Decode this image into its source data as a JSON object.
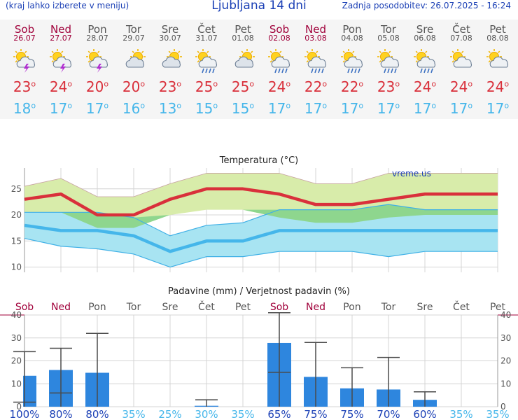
{
  "header": {
    "left_note": "(kraj lahko izberete v meniju)",
    "title": "Ljubljana 14 dni",
    "updated": "Zadnja posodobitev: 26.07.2025 - 16:24"
  },
  "days": [
    {
      "name": "Sob",
      "date": "26.07",
      "weekend": true,
      "icon": "sun-cloud-lightning-icon",
      "tmax": "23",
      "tmin": "18"
    },
    {
      "name": "Ned",
      "date": "27.07",
      "weekend": true,
      "icon": "sun-cloud-lightning-icon",
      "tmax": "24",
      "tmin": "17"
    },
    {
      "name": "Pon",
      "date": "28.07",
      "weekend": false,
      "icon": "sun-cloud-lightning-icon",
      "tmax": "20",
      "tmin": "17"
    },
    {
      "name": "Tor",
      "date": "29.07",
      "weekend": false,
      "icon": "cloudy-sun-icon",
      "tmax": "20",
      "tmin": "16"
    },
    {
      "name": "Sre",
      "date": "30.07",
      "weekend": false,
      "icon": "cloudy-sun-icon",
      "tmax": "23",
      "tmin": "13"
    },
    {
      "name": "Čet",
      "date": "31.07",
      "weekend": false,
      "icon": "sun-cloud-rain-icon",
      "tmax": "25",
      "tmin": "15"
    },
    {
      "name": "Pet",
      "date": "01.08",
      "weekend": false,
      "icon": "cloudy-sun-icon",
      "tmax": "25",
      "tmin": "15"
    },
    {
      "name": "Sob",
      "date": "02.08",
      "weekend": true,
      "icon": "sun-cloud-rain-icon",
      "tmax": "24",
      "tmin": "17"
    },
    {
      "name": "Ned",
      "date": "03.08",
      "weekend": true,
      "icon": "sun-cloud-rain-icon",
      "tmax": "22",
      "tmin": "17"
    },
    {
      "name": "Pon",
      "date": "04.08",
      "weekend": false,
      "icon": "sun-cloud-rain-icon",
      "tmax": "22",
      "tmin": "17"
    },
    {
      "name": "Tor",
      "date": "05.08",
      "weekend": false,
      "icon": "sun-cloud-rain-icon",
      "tmax": "23",
      "tmin": "17"
    },
    {
      "name": "Sre",
      "date": "06.08",
      "weekend": false,
      "icon": "sun-cloud-rain-icon",
      "tmax": "24",
      "tmin": "17"
    },
    {
      "name": "Čet",
      "date": "07.08",
      "weekend": false,
      "icon": "partly-sunny-icon",
      "tmax": "24",
      "tmin": "17"
    },
    {
      "name": "Pet",
      "date": "08.08",
      "weekend": false,
      "icon": "partly-sunny-icon",
      "tmax": "24",
      "tmin": "17"
    }
  ],
  "colors": {
    "weekend": "#a0003a",
    "tmax": "#d9303b",
    "tmin": "#45b6ea",
    "band_high": "#d8ecaa",
    "band_low": "#a8e4f2",
    "overlap": "#8ed68e",
    "bar": "#2e86de",
    "prob_high": "#1a3fb5",
    "prob_low": "#45b6ea"
  },
  "chart_data": [
    {
      "type": "line",
      "title": "Temperatura (°C)",
      "source_label": "vreme.us",
      "ylim": [
        9,
        29
      ],
      "yticks": [
        10,
        15,
        20,
        25
      ],
      "grid": true,
      "categories": [
        "Sob",
        "Ned",
        "Pon",
        "Tor",
        "Sre",
        "Čet",
        "Pet",
        "Sob",
        "Ned",
        "Pon",
        "Tor",
        "Sre",
        "Čet",
        "Pet"
      ],
      "series": [
        {
          "values": [
            23,
            24,
            20,
            20,
            23,
            25,
            25,
            24,
            22,
            22,
            23,
            24,
            24,
            24
          ]
        },
        {
          "values": [
            18,
            17,
            17,
            16,
            13,
            15,
            15,
            17,
            17,
            17,
            17,
            17,
            17,
            17
          ]
        },
        {
          "values": [
            25.5,
            27,
            23.5,
            23.5,
            26,
            28,
            28,
            28,
            26,
            26,
            28,
            28,
            28,
            28
          ]
        },
        {
          "values": [
            20.5,
            20.5,
            17.5,
            17.5,
            20,
            21,
            21,
            19.5,
            18.5,
            18.5,
            19.5,
            20,
            20,
            20
          ]
        },
        {
          "values": [
            20.5,
            20.5,
            20.5,
            19.5,
            16,
            18,
            18.5,
            21,
            21,
            21,
            22,
            21,
            21,
            21
          ]
        },
        {
          "values": [
            15.5,
            14,
            13.5,
            12.5,
            10,
            12,
            12,
            13,
            13,
            13,
            12,
            13,
            13,
            13
          ]
        }
      ]
    },
    {
      "type": "bar",
      "title": "Padavine (mm) / Verjetnost padavin (%)",
      "ylim": [
        0,
        40
      ],
      "yticks": [
        0,
        10,
        20,
        30,
        40
      ],
      "grid": true,
      "categories": [
        "Sob",
        "Ned",
        "Pon",
        "Tor",
        "Sre",
        "Čet",
        "Pet",
        "Sob",
        "Ned",
        "Pon",
        "Tor",
        "Sre",
        "Čet",
        "Pet"
      ],
      "values": [
        13.5,
        16,
        14.8,
        0,
        0,
        0.4,
        0,
        27.8,
        13,
        8,
        7.5,
        3,
        0,
        0
      ],
      "error_low": [
        2,
        6,
        0,
        0,
        0,
        0,
        0,
        15,
        0,
        0,
        0,
        0,
        0,
        0
      ],
      "error_high": [
        24,
        25.5,
        32,
        0,
        0,
        3,
        0,
        41,
        28,
        17,
        21.5,
        6.5,
        0,
        0
      ],
      "probability": [
        "100%",
        "80%",
        "80%",
        "35%",
        "25%",
        "30%",
        "35%",
        "65%",
        "75%",
        "75%",
        "70%",
        "60%",
        "35%",
        "35%"
      ]
    }
  ]
}
